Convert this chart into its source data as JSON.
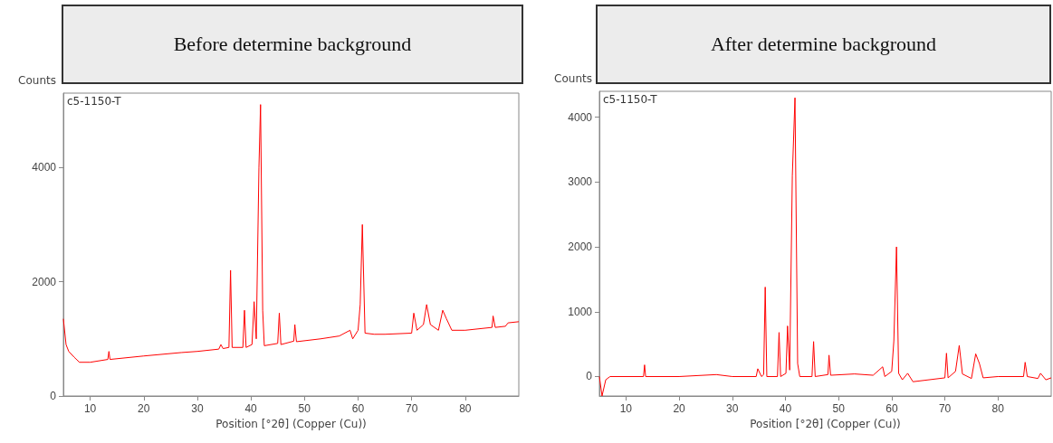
{
  "chart_data": [
    {
      "type": "line",
      "title": "Before determine background",
      "xlabel": "Position [°2θ] (Copper (Cu))",
      "ylabel": "Counts",
      "annotations": [
        "c5-1150-T"
      ],
      "xlim": [
        5,
        90
      ],
      "ylim": [
        0,
        5300
      ],
      "xticks": [
        10,
        20,
        30,
        40,
        50,
        60,
        70,
        80
      ],
      "yticks": [
        0,
        2000,
        4000
      ],
      "grid": false,
      "color": "#ff0000",
      "x": [
        5,
        5.5,
        6,
        7,
        8,
        10,
        13.3,
        13.5,
        13.7,
        20,
        27,
        30,
        34,
        34.4,
        34.8,
        35.9,
        36.2,
        36.5,
        38.5,
        38.8,
        39.1,
        40.2,
        40.6,
        41,
        41.5,
        41.8,
        42.2,
        42.5,
        45,
        45.3,
        45.6,
        48,
        48.2,
        48.5,
        53,
        56.5,
        58.5,
        59,
        60,
        60.4,
        60.8,
        61.3,
        63,
        65,
        70,
        70.4,
        71,
        72.2,
        72.8,
        73.5,
        75,
        75.8,
        76.5,
        77.5,
        80,
        85,
        85.2,
        85.6,
        87.5,
        88,
        90
      ],
      "values": [
        1350,
        900,
        780,
        680,
        590,
        590,
        640,
        780,
        640,
        700,
        760,
        780,
        820,
        900,
        830,
        850,
        2200,
        850,
        850,
        1500,
        850,
        900,
        1650,
        1000,
        4000,
        5100,
        1500,
        880,
        920,
        1450,
        900,
        960,
        1250,
        950,
        1000,
        1050,
        1150,
        1000,
        1150,
        1600,
        3000,
        1100,
        1080,
        1080,
        1100,
        1450,
        1150,
        1250,
        1600,
        1250,
        1150,
        1500,
        1350,
        1150,
        1150,
        1200,
        1400,
        1200,
        1220,
        1280,
        1300
      ]
    },
    {
      "type": "line",
      "title": "After determine background",
      "xlabel": "Position [°2θ] (Copper (Cu))",
      "ylabel": "Counts",
      "annotations": [
        "c5-1150-T"
      ],
      "xlim": [
        5,
        90
      ],
      "ylim": [
        -300,
        4400
      ],
      "xticks": [
        10,
        20,
        30,
        40,
        50,
        60,
        70,
        80
      ],
      "yticks": [
        0,
        1000,
        2000,
        3000,
        4000
      ],
      "grid": false,
      "color": "#ff0000",
      "x": [
        5,
        5.5,
        6.2,
        7,
        13.3,
        13.5,
        13.7,
        20,
        27,
        30,
        34.5,
        34.8,
        35.5,
        35.9,
        36.2,
        36.5,
        38.5,
        38.8,
        39.1,
        40.1,
        40.4,
        40.8,
        41.3,
        41.8,
        42.3,
        42.7,
        45,
        45.3,
        45.6,
        48,
        48.2,
        48.5,
        53,
        56.5,
        58.3,
        58.7,
        60,
        60.4,
        60.9,
        61.3,
        62,
        63,
        64,
        70,
        70.3,
        70.6,
        72,
        72.7,
        73.3,
        75,
        75.8,
        76.5,
        77.2,
        80,
        84.8,
        85.1,
        85.5,
        87.5,
        88,
        89,
        90
      ],
      "values": [
        0,
        -300,
        -50,
        0,
        0,
        180,
        0,
        0,
        30,
        0,
        0,
        120,
        0,
        30,
        1380,
        0,
        0,
        680,
        0,
        50,
        780,
        100,
        3100,
        4300,
        200,
        0,
        0,
        540,
        0,
        30,
        330,
        20,
        40,
        20,
        150,
        0,
        80,
        550,
        2000,
        50,
        -50,
        50,
        -80,
        -20,
        360,
        -20,
        80,
        480,
        40,
        -30,
        350,
        200,
        -20,
        0,
        0,
        220,
        0,
        -30,
        50,
        -50,
        -20
      ]
    }
  ]
}
